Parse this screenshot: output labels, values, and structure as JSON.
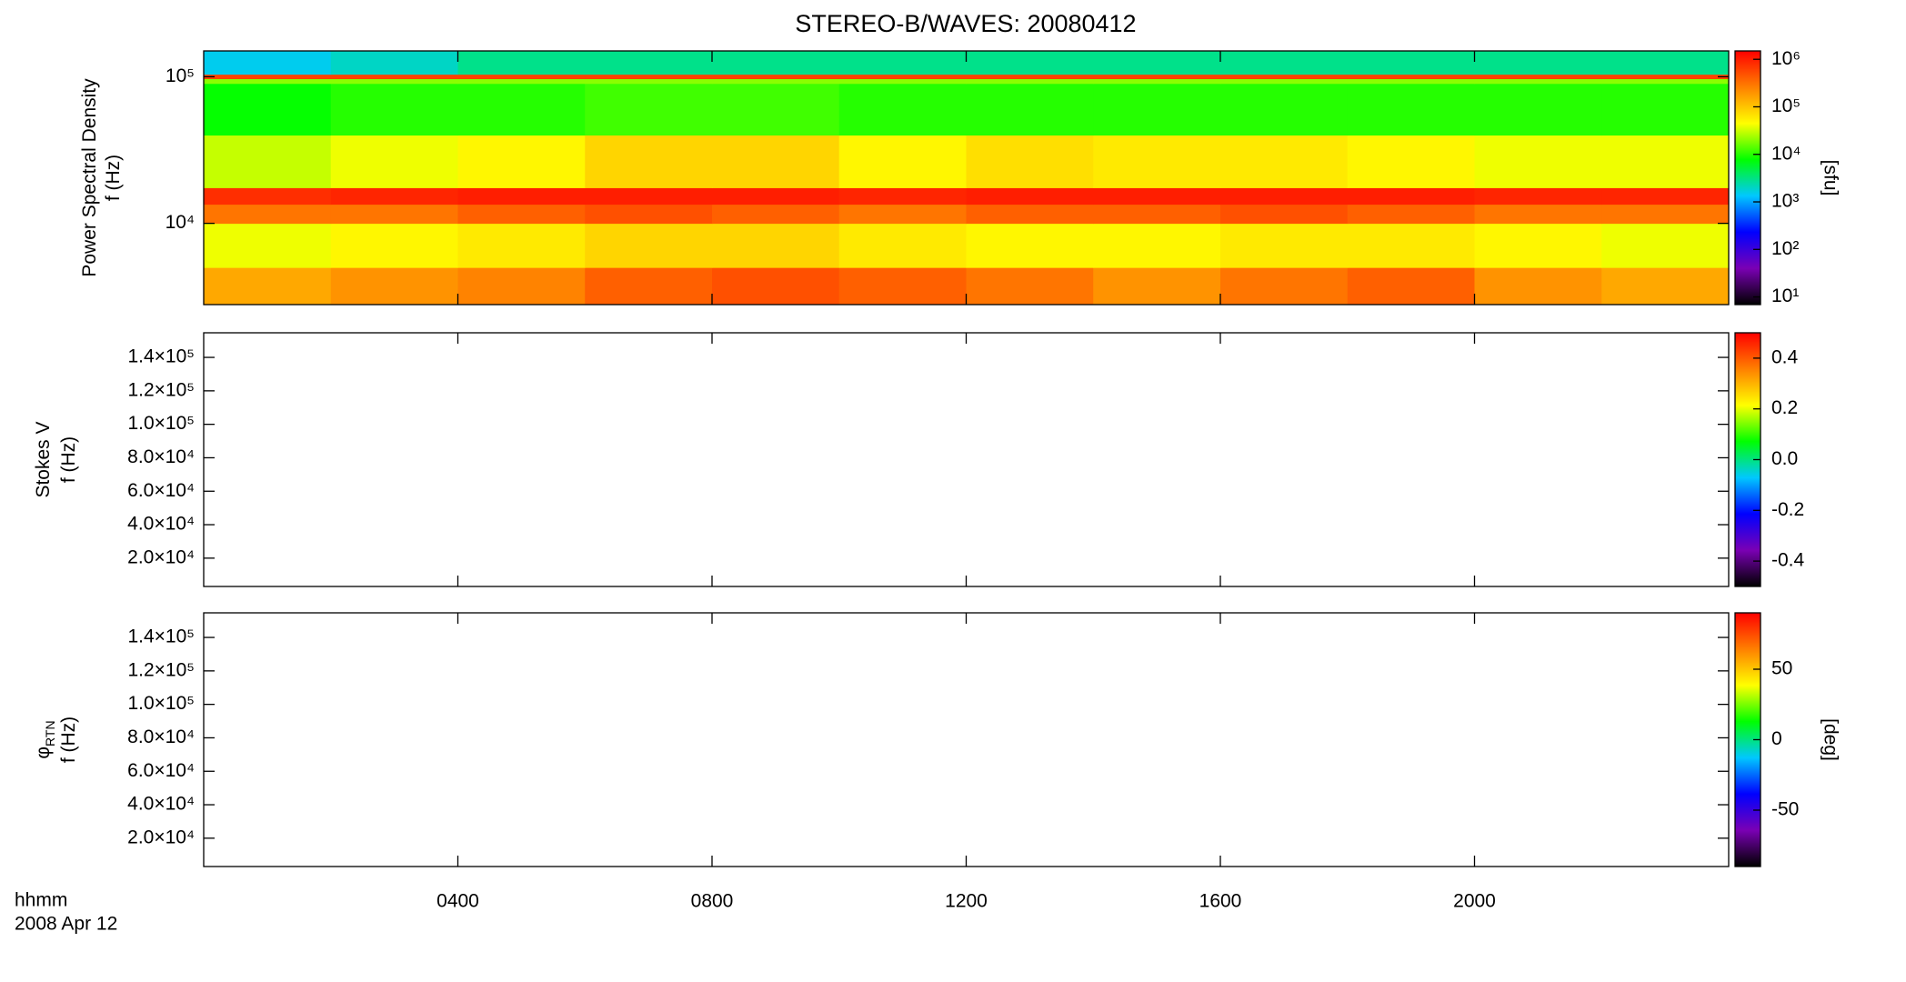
{
  "chart_data": [
    {
      "type": "heatmap",
      "title": "STEREO-B/WAVES: 20080412",
      "ylabel": [
        "Power Spectral Density",
        "f (Hz)"
      ],
      "ylog": true,
      "ylim": [
        2790,
        150000
      ],
      "yticks": [
        {
          "value": 10000,
          "label": "10⁴"
        },
        {
          "value": 100000,
          "label": "10⁵"
        }
      ],
      "xlim": [
        0,
        24
      ],
      "colormap": [
        "#000000",
        "#7a00b4",
        "#0000ff",
        "#00c8ff",
        "#00ff00",
        "#ffff00",
        "#ff8000",
        "#ff0000"
      ],
      "colorbar": {
        "label": "[sfu]",
        "log": true,
        "lim": [
          6.9,
          1500000
        ],
        "ticks": [
          {
            "value": 10,
            "label": "10¹"
          },
          {
            "value": 100,
            "label": "10²"
          },
          {
            "value": 1000,
            "label": "10³"
          },
          {
            "value": 10000,
            "label": "10⁴"
          },
          {
            "value": 100000,
            "label": "10⁵"
          },
          {
            "value": 1000000,
            "label": "10⁶"
          }
        ]
      },
      "spectrogram": {
        "time_edges": [
          0,
          2,
          4,
          6,
          8,
          10,
          12,
          14,
          16,
          18,
          20,
          22,
          24
        ],
        "freq_edges": [
          2790,
          5000,
          10000,
          13500,
          17500,
          40000,
          90000,
          97000,
          104000,
          150000
        ],
        "z": [
          [
            150000,
            200000,
            250000,
            400000,
            500000,
            400000,
            300000,
            200000,
            300000,
            400000,
            200000,
            150000
          ],
          [
            40000,
            50000,
            60000,
            80000,
            80000,
            60000,
            50000,
            50000,
            60000,
            60000,
            50000,
            40000
          ],
          [
            300000,
            300000,
            400000,
            500000,
            400000,
            300000,
            400000,
            400000,
            500000,
            400000,
            300000,
            300000
          ],
          [
            800000,
            900000,
            1000000,
            1000000,
            1000000,
            900000,
            1000000,
            1000000,
            1000000,
            1000000,
            900000,
            900000
          ],
          [
            30000,
            40000,
            50000,
            80000,
            80000,
            50000,
            70000,
            60000,
            60000,
            50000,
            40000,
            40000
          ],
          [
            8000,
            10000,
            10000,
            12000,
            12000,
            10000,
            10000,
            10000,
            10000,
            10000,
            10000,
            10000
          ],
          [
            20000,
            20000,
            20000,
            20000,
            20000,
            20000,
            20000,
            20000,
            20000,
            20000,
            20000,
            20000
          ],
          [
            600000,
            600000,
            600000,
            600000,
            600000,
            600000,
            600000,
            600000,
            600000,
            600000,
            600000,
            600000
          ],
          [
            1500,
            2000,
            3000,
            3000,
            3000,
            3000,
            3000,
            3000,
            3000,
            3000,
            3000,
            3000
          ]
        ]
      }
    },
    {
      "type": "heatmap",
      "ylabel": [
        "Stokes V",
        "f (Hz)"
      ],
      "ylim": [
        3070,
        154700
      ],
      "yticks": [
        {
          "value": 20000,
          "label": "2.0×10⁴"
        },
        {
          "value": 40000,
          "label": "4.0×10⁴"
        },
        {
          "value": 60000,
          "label": "6.0×10⁴"
        },
        {
          "value": 80000,
          "label": "8.0×10⁴"
        },
        {
          "value": 100000,
          "label": "1.0×10⁵"
        },
        {
          "value": 120000,
          "label": "1.2×10⁵"
        },
        {
          "value": 140000,
          "label": "1.4×10⁵"
        }
      ],
      "xlim": [
        0,
        24
      ],
      "colorbar": {
        "lim": [
          -0.5,
          0.5
        ],
        "ticks": [
          {
            "value": -0.4,
            "label": "-0.4"
          },
          {
            "value": -0.2,
            "label": "-0.2"
          },
          {
            "value": 0,
            "label": "0.0"
          },
          {
            "value": 0.2,
            "label": "0.2"
          },
          {
            "value": 0.4,
            "label": "0.4"
          }
        ]
      }
    },
    {
      "type": "heatmap",
      "ylabel": [
        "φ",
        "f (Hz)"
      ],
      "ylabel_subscript": "RTN",
      "ylim": [
        3070,
        154700
      ],
      "yticks": [
        {
          "value": 20000,
          "label": "2.0×10⁴"
        },
        {
          "value": 40000,
          "label": "4.0×10⁴"
        },
        {
          "value": 60000,
          "label": "6.0×10⁴"
        },
        {
          "value": 80000,
          "label": "8.0×10⁴"
        },
        {
          "value": 100000,
          "label": "1.0×10⁵"
        },
        {
          "value": 120000,
          "label": "1.2×10⁵"
        },
        {
          "value": 140000,
          "label": "1.4×10⁵"
        }
      ],
      "xlim": [
        0,
        24
      ],
      "xticks": [
        {
          "value": 4,
          "label": "0400"
        },
        {
          "value": 8,
          "label": "0800"
        },
        {
          "value": 12,
          "label": "1200"
        },
        {
          "value": 16,
          "label": "1600"
        },
        {
          "value": 20,
          "label": "2000"
        }
      ],
      "xlabel": [
        "hhmm",
        "2008 Apr 12"
      ],
      "colorbar": {
        "label": "[deg]",
        "lim": [
          -90,
          90
        ],
        "ticks": [
          {
            "value": -50,
            "label": "-50"
          },
          {
            "value": 0,
            "label": "0"
          },
          {
            "value": 50,
            "label": "50"
          }
        ]
      }
    }
  ]
}
